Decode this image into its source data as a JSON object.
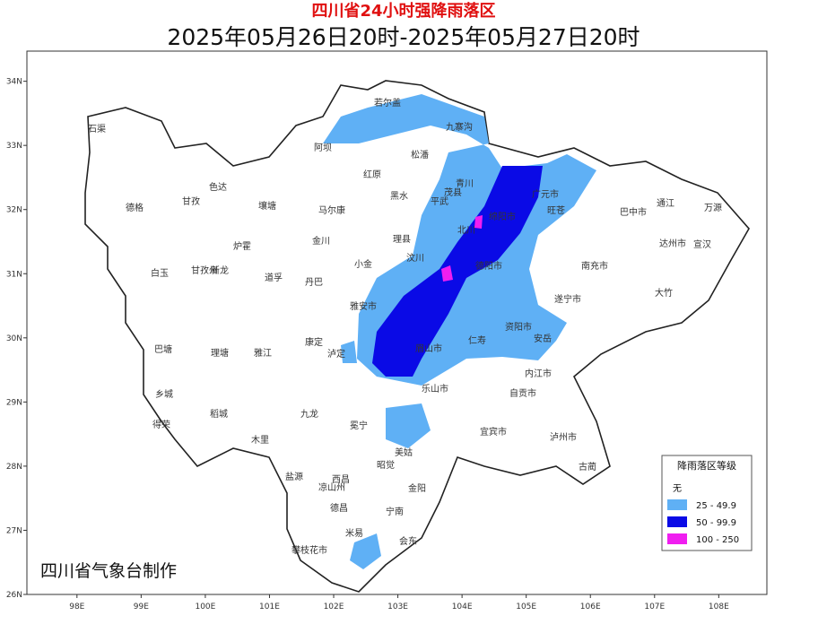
{
  "header": {
    "title": "四川省24小时强降雨落区",
    "subtitle": "2025年05月26日20时-2025年05月27日20时"
  },
  "axes": {
    "lon_range": [
      97.22,
      108.75
    ],
    "lat_range": [
      26,
      34.47
    ],
    "lon_ticks": [
      {
        "value": 98,
        "label": "98E"
      },
      {
        "value": 99,
        "label": "99E"
      },
      {
        "value": 100,
        "label": "100E"
      },
      {
        "value": 101,
        "label": "101E"
      },
      {
        "value": 102,
        "label": "102E"
      },
      {
        "value": 103,
        "label": "103E"
      },
      {
        "value": 104,
        "label": "104E"
      },
      {
        "value": 105,
        "label": "105E"
      },
      {
        "value": 106,
        "label": "106E"
      },
      {
        "value": 107,
        "label": "107E"
      },
      {
        "value": 108,
        "label": "108E"
      }
    ],
    "lat_ticks": [
      {
        "value": 26,
        "label": "26N"
      },
      {
        "value": 27,
        "label": "27N"
      },
      {
        "value": 28,
        "label": "28N"
      },
      {
        "value": 29,
        "label": "29N"
      },
      {
        "value": 30,
        "label": "30N"
      },
      {
        "value": 31,
        "label": "31N"
      },
      {
        "value": 32,
        "label": "32N"
      },
      {
        "value": 33,
        "label": "33N"
      },
      {
        "value": 34,
        "label": "34N"
      }
    ]
  },
  "places": [
    "石渠",
    "德格",
    "甘孜",
    "色达",
    "壤塘",
    "阿坝",
    "若尔盖",
    "九寨沟",
    "红原",
    "松潘",
    "马尔康",
    "黑水",
    "金川",
    "理县",
    "茂县",
    "小金",
    "汶川",
    "丹巴",
    "炉霍",
    "道孚",
    "甘孜州",
    "白玉",
    "新龙",
    "巴塘",
    "理塘",
    "雅江",
    "康定",
    "泸定",
    "乡城",
    "稻城",
    "得荣",
    "九龙",
    "木里",
    "盐源",
    "冕宁",
    "西昌",
    "凉山州",
    "德昌",
    "米易",
    "宁南",
    "会东",
    "攀枝花市",
    "广元市",
    "巴中市",
    "达州市",
    "南充市",
    "绵阳市",
    "德阳市",
    "遂宁市",
    "资阳市",
    "乐山市",
    "眉山市",
    "雅安市",
    "内江市",
    "自贡市",
    "宜宾市",
    "泸州市",
    "古蔺",
    "万源",
    "通江",
    "宣汉",
    "大竹",
    "旺苍",
    "青川",
    "平武",
    "北川",
    "安岳",
    "仁寿",
    "金阳",
    "美姑",
    "昭觉"
  ],
  "legend": {
    "title": "降雨落区等级",
    "items": [
      {
        "label": "无",
        "color": "#ffffff"
      },
      {
        "label": "25 - 49.9",
        "color": "#5fb0f5"
      },
      {
        "label": "50 - 99.9",
        "color": "#0a0ae6"
      },
      {
        "label": "100 - 250",
        "color": "#f01ef0"
      }
    ]
  },
  "credit": "四川省气象台制作"
}
